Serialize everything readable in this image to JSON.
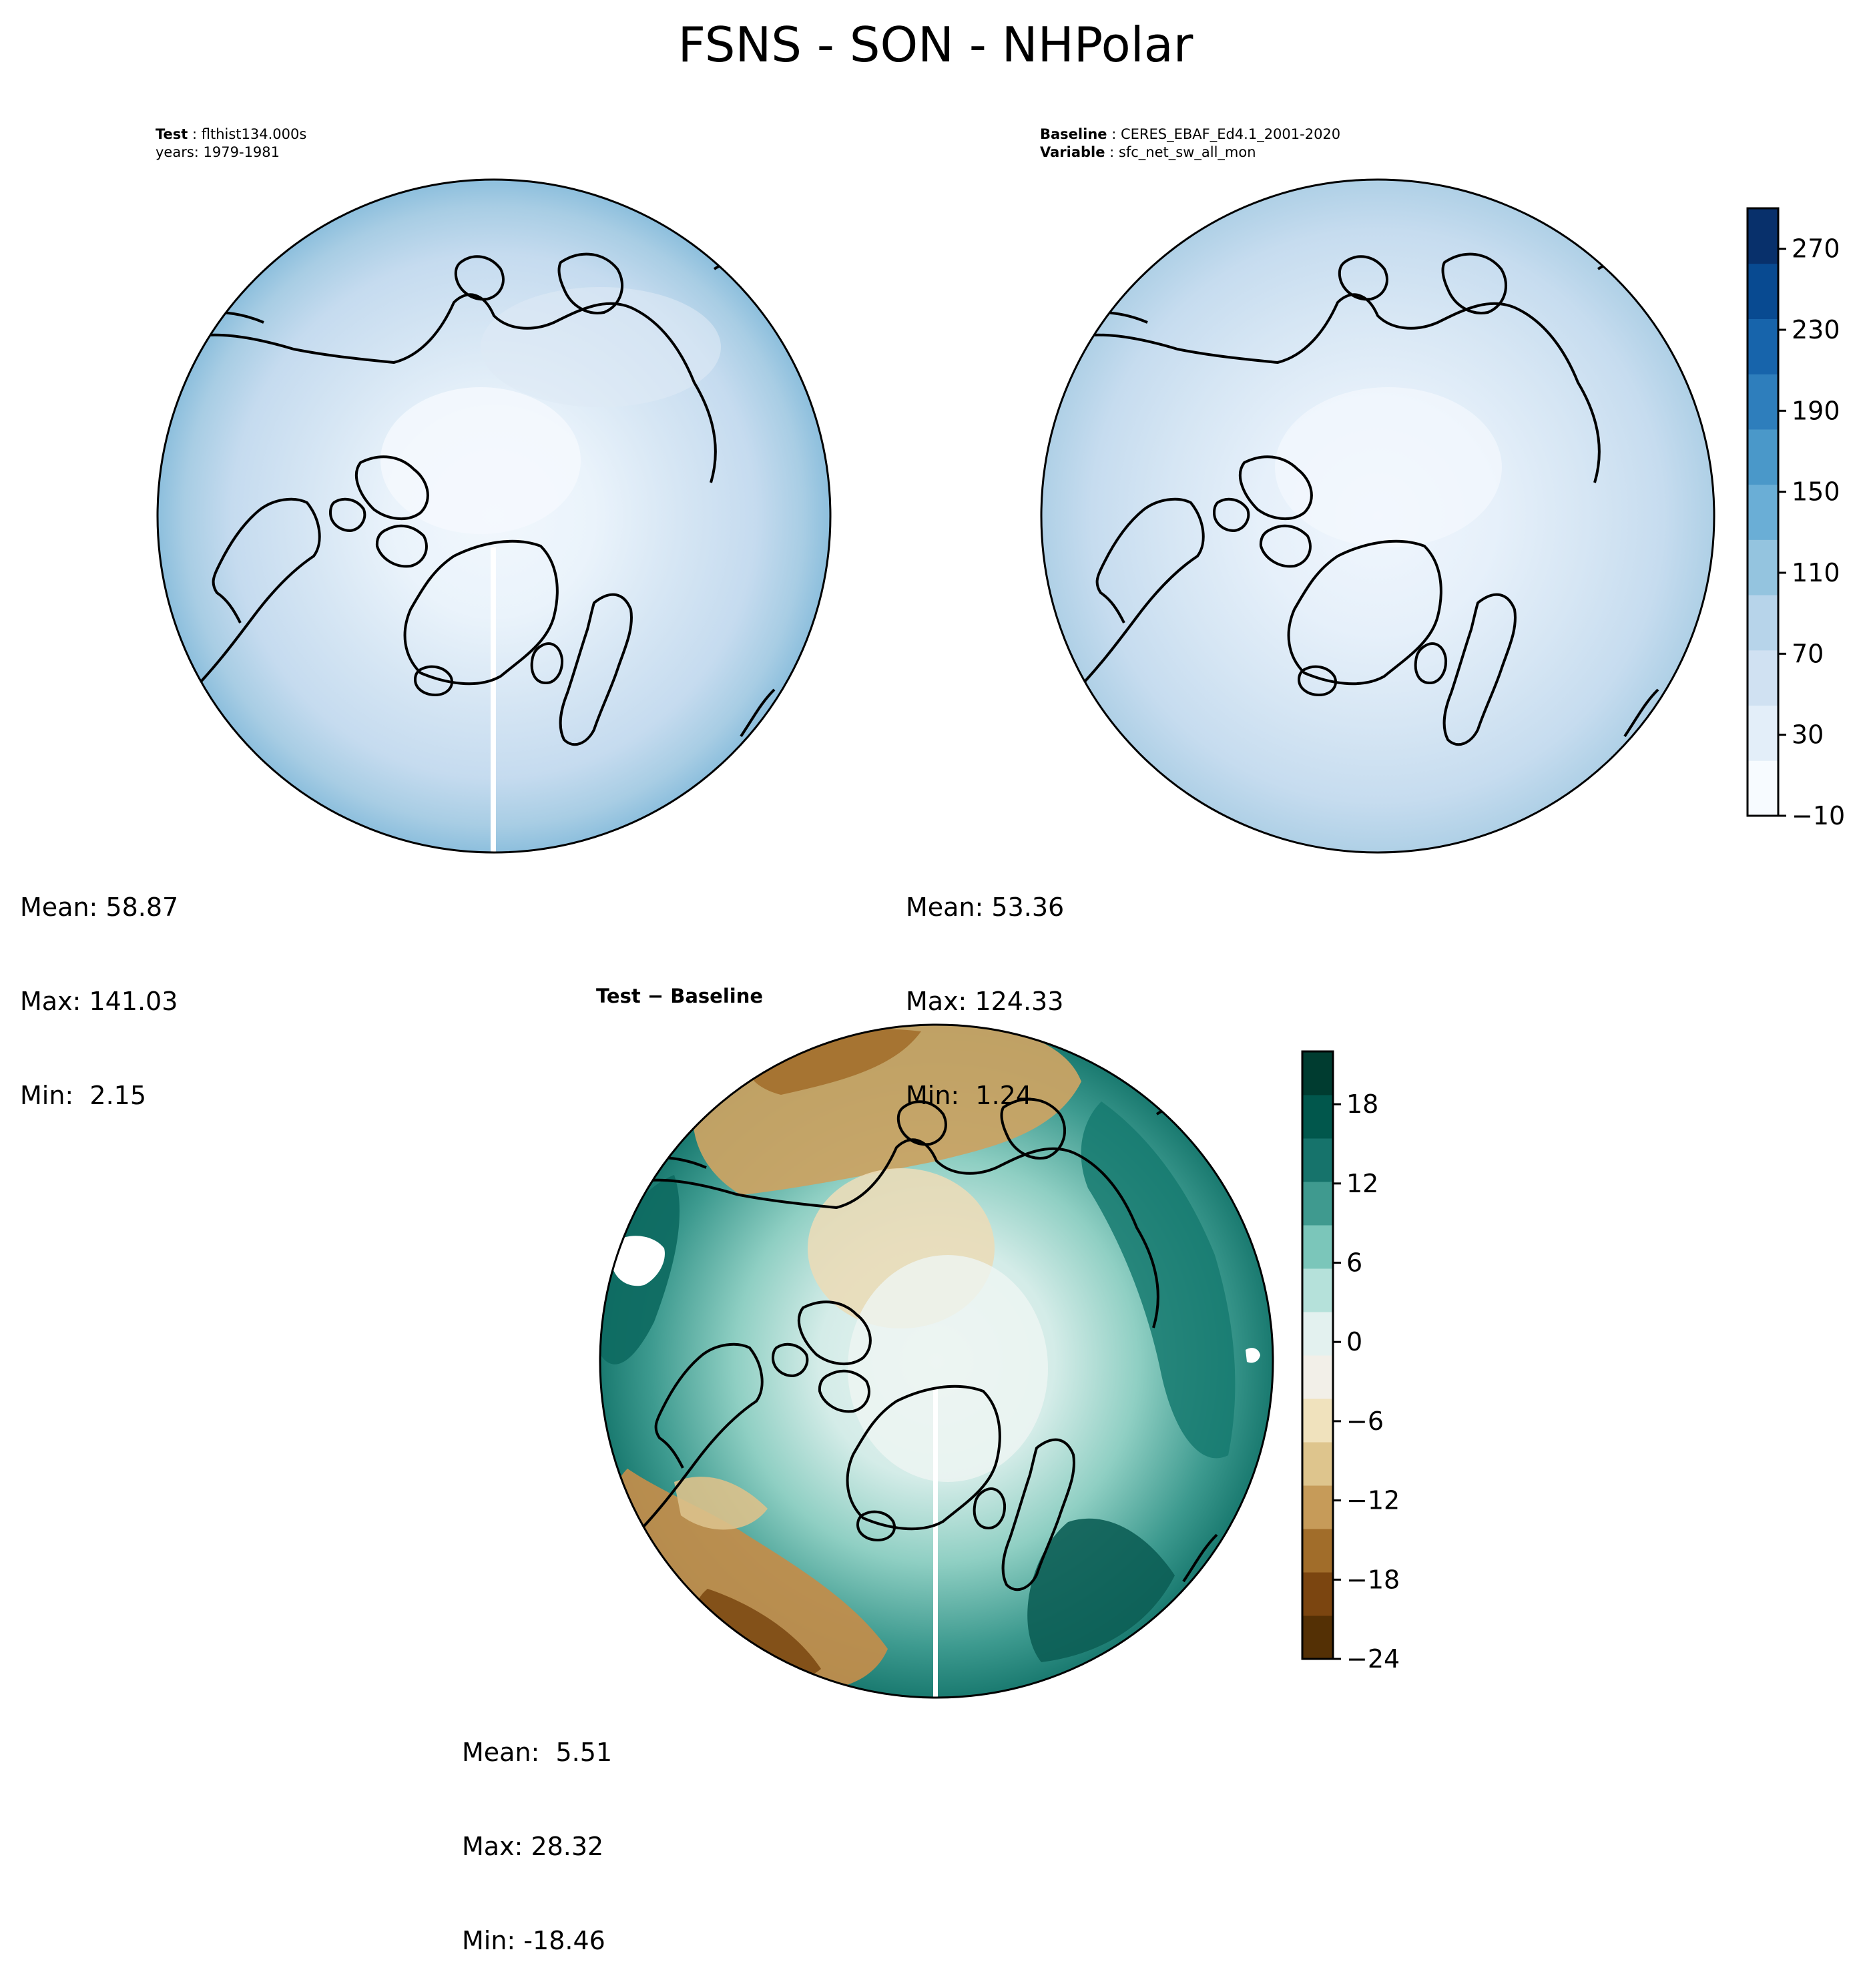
{
  "title": "FSNS - SON - NHPolar",
  "panels": {
    "test": {
      "label_key": "Test",
      "label_value": "flthist134.000s",
      "years": "years: 1979-1981",
      "stats": {
        "mean": "Mean: 58.87",
        "max": "Max: 141.03",
        "min": "Min:  2.15"
      }
    },
    "baseline": {
      "label_key": "Baseline",
      "label_value": "CERES_EBAF_Ed4.1_2001-2020",
      "var_key": "Variable",
      "var_value": "sfc_net_sw_all_mon",
      "stats": {
        "mean": "Mean: 53.36",
        "max": "Max: 124.33",
        "min": "Min:  1.24"
      }
    },
    "diff": {
      "label": "Test − Baseline",
      "stats": {
        "mean": "Mean:  5.51",
        "max": "Max: 28.32",
        "min": "Min: -18.46"
      }
    }
  },
  "colorbars": {
    "main": {
      "colormap": "Blues",
      "range": [
        -10,
        290
      ],
      "levels": 15,
      "ticks": [
        "−10",
        "30",
        "70",
        "110",
        "150",
        "190",
        "230",
        "270"
      ],
      "colors": [
        "#f7fbff",
        "#e3eef9",
        "#d0e1f2",
        "#b7d4ea",
        "#94c4df",
        "#6aaed6",
        "#4a98c9",
        "#2e7ebc",
        "#1764ab",
        "#084a91",
        "#08306b"
      ]
    },
    "diff": {
      "colormap": "BrBG",
      "range": [
        -24,
        22
      ],
      "ticks": [
        "−24",
        "−18",
        "−12",
        "−6",
        "0",
        "6",
        "12",
        "18"
      ],
      "colors": [
        "#543005",
        "#7b4510",
        "#a16d2a",
        "#c69b59",
        "#dec58d",
        "#f0e2bd",
        "#f2efe8",
        "#e3f1ef",
        "#b5e1da",
        "#7bc6ba",
        "#3f9a8f",
        "#16736b",
        "#01574c",
        "#003c30"
      ]
    }
  }
}
